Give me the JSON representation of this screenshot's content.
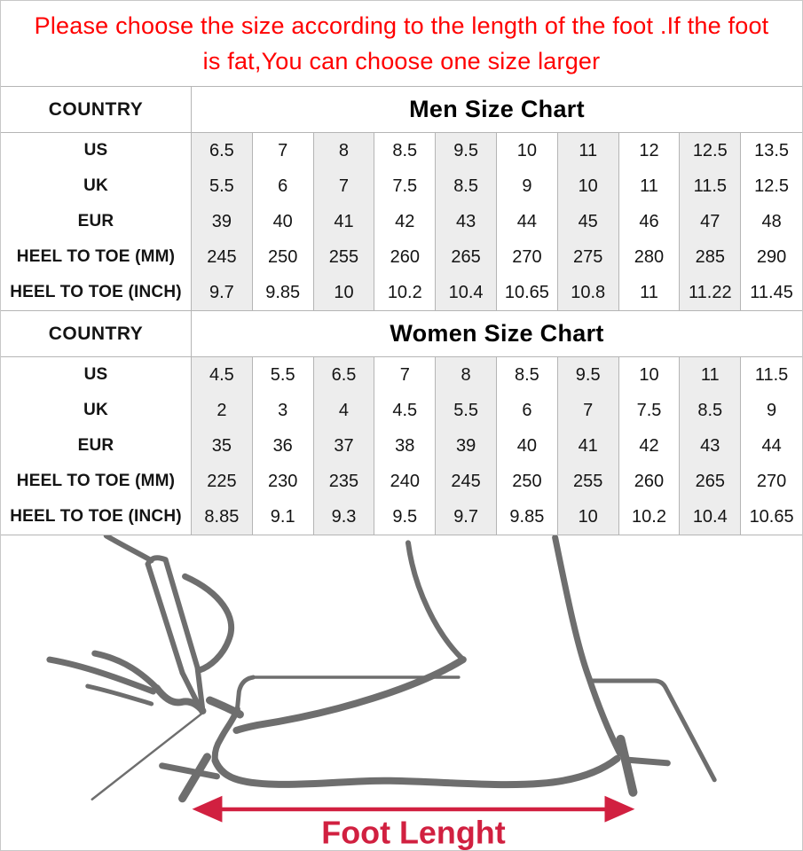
{
  "notice": {
    "line1": "Please choose the size according to the length of the foot .If the foot",
    "line2": "is fat,You can choose one size larger"
  },
  "tables": [
    {
      "country_label": "COUNTRY",
      "title": "Men Size Chart",
      "rows": [
        {
          "label": "US",
          "values": [
            "6.5",
            "7",
            "8",
            "8.5",
            "9.5",
            "10",
            "11",
            "12",
            "12.5",
            "13.5"
          ]
        },
        {
          "label": "UK",
          "values": [
            "5.5",
            "6",
            "7",
            "7.5",
            "8.5",
            "9",
            "10",
            "11",
            "11.5",
            "12.5"
          ]
        },
        {
          "label": "EUR",
          "values": [
            "39",
            "40",
            "41",
            "42",
            "43",
            "44",
            "45",
            "46",
            "47",
            "48"
          ]
        },
        {
          "label": "HEEL TO TOE (MM)",
          "values": [
            "245",
            "250",
            "255",
            "260",
            "265",
            "270",
            "275",
            "280",
            "285",
            "290"
          ]
        },
        {
          "label": "HEEL TO TOE (INCH)",
          "values": [
            "9.7",
            "9.85",
            "10",
            "10.2",
            "10.4",
            "10.65",
            "10.8",
            "11",
            "11.22",
            "11.45"
          ]
        }
      ]
    },
    {
      "country_label": "COUNTRY",
      "title": "Women Size Chart",
      "rows": [
        {
          "label": "US",
          "values": [
            "4.5",
            "5.5",
            "6.5",
            "7",
            "8",
            "8.5",
            "9.5",
            "10",
            "11",
            "11.5"
          ]
        },
        {
          "label": "UK",
          "values": [
            "2",
            "3",
            "4",
            "4.5",
            "5.5",
            "6",
            "7",
            "7.5",
            "8.5",
            "9"
          ]
        },
        {
          "label": "EUR",
          "values": [
            "35",
            "36",
            "37",
            "38",
            "39",
            "40",
            "41",
            "42",
            "43",
            "44"
          ]
        },
        {
          "label": "HEEL TO TOE (MM)",
          "values": [
            "225",
            "230",
            "235",
            "240",
            "245",
            "250",
            "255",
            "260",
            "265",
            "270"
          ]
        },
        {
          "label": "HEEL TO TOE (INCH)",
          "values": [
            "8.85",
            "9.1",
            "9.3",
            "9.5",
            "9.7",
            "9.85",
            "10",
            "10.2",
            "10.4",
            "10.65"
          ]
        }
      ]
    }
  ],
  "diagram": {
    "arrow_label": "Foot Lenght"
  },
  "colors": {
    "notice_red": "#ff0000",
    "arrow_crimson": "#d12040",
    "sketch_gray": "#6e6e6e",
    "stripe_gray": "#ededed",
    "border_gray": "#b5b5b5"
  }
}
